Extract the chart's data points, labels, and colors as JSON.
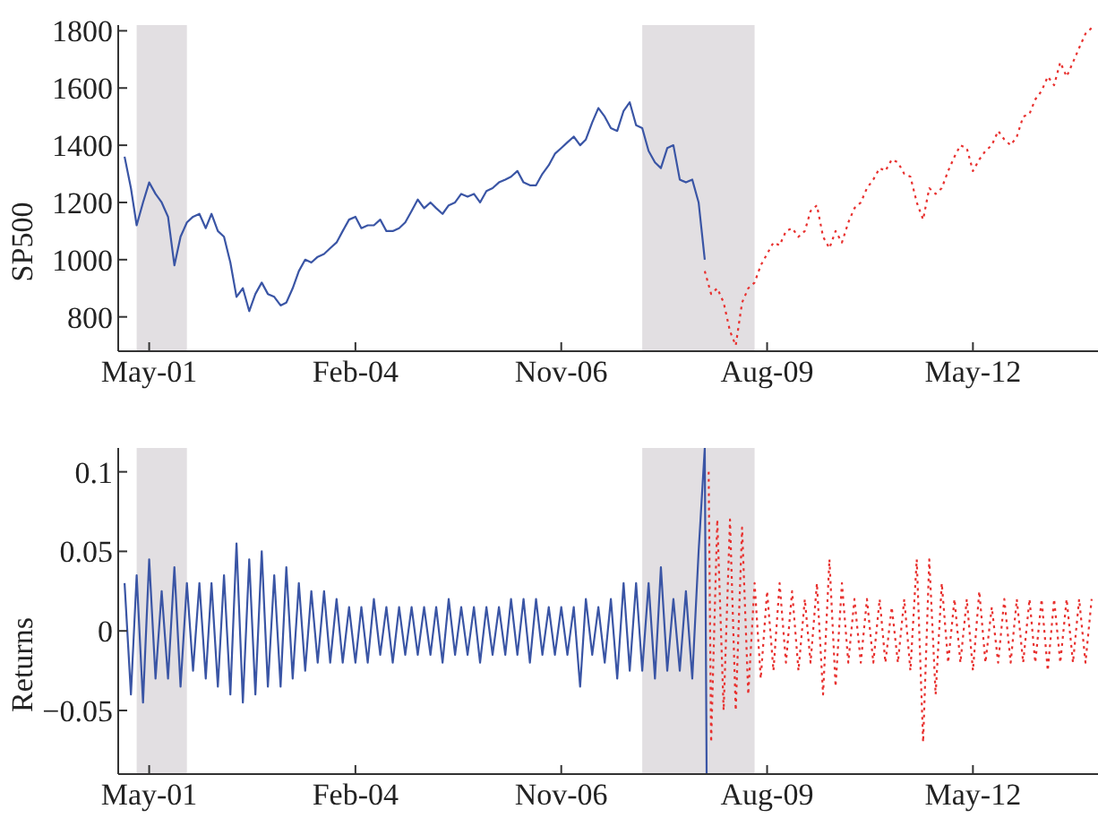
{
  "chart_data": [
    {
      "type": "line",
      "ylabel": "SP500",
      "xlim": [
        "2000-12-01",
        "2014-01-01"
      ],
      "xticks": [
        {
          "value": "2001-05",
          "label": "May-01"
        },
        {
          "value": "2004-02",
          "label": "Feb-04"
        },
        {
          "value": "2006-11",
          "label": "Nov-06"
        },
        {
          "value": "2009-08",
          "label": "Aug-09"
        },
        {
          "value": "2012-05",
          "label": "May-12"
        }
      ],
      "ylim": [
        680,
        1820
      ],
      "yticks": [
        800,
        1000,
        1200,
        1400,
        1600,
        1800
      ],
      "grid": false,
      "legend": false,
      "marker": "none",
      "bands": [
        {
          "axis": "x",
          "from": "2001-03",
          "to": "2001-11",
          "color": "#e2dfe2"
        },
        {
          "axis": "x",
          "from": "2007-12",
          "to": "2009-06",
          "color": "#e2dfe2"
        }
      ],
      "series": [
        {
          "color": "#3a55a5",
          "line_style": "solid",
          "x": [
            "2001-01",
            "2001-02",
            "2001-03",
            "2001-04",
            "2001-05",
            "2001-06",
            "2001-07",
            "2001-08",
            "2001-09",
            "2001-10",
            "2001-11",
            "2001-12",
            "2002-01",
            "2002-02",
            "2002-03",
            "2002-04",
            "2002-05",
            "2002-06",
            "2002-07",
            "2002-08",
            "2002-09",
            "2002-10",
            "2002-11",
            "2002-12",
            "2003-01",
            "2003-02",
            "2003-03",
            "2003-04",
            "2003-05",
            "2003-06",
            "2003-07",
            "2003-08",
            "2003-09",
            "2003-10",
            "2003-11",
            "2003-12",
            "2004-01",
            "2004-02",
            "2004-03",
            "2004-04",
            "2004-05",
            "2004-06",
            "2004-07",
            "2004-08",
            "2004-09",
            "2004-10",
            "2004-11",
            "2004-12",
            "2005-01",
            "2005-02",
            "2005-03",
            "2005-04",
            "2005-05",
            "2005-06",
            "2005-07",
            "2005-08",
            "2005-09",
            "2005-10",
            "2005-11",
            "2005-12",
            "2006-01",
            "2006-02",
            "2006-03",
            "2006-04",
            "2006-05",
            "2006-06",
            "2006-07",
            "2006-08",
            "2006-09",
            "2006-10",
            "2006-11",
            "2006-12",
            "2007-01",
            "2007-02",
            "2007-03",
            "2007-04",
            "2007-05",
            "2007-06",
            "2007-07",
            "2007-08",
            "2007-09",
            "2007-10",
            "2007-11",
            "2007-12",
            "2008-01",
            "2008-02",
            "2008-03",
            "2008-04",
            "2008-05",
            "2008-06",
            "2008-07",
            "2008-08",
            "2008-09",
            "2008-10"
          ],
          "values": [
            1360,
            1250,
            1120,
            1200,
            1270,
            1230,
            1200,
            1150,
            980,
            1080,
            1130,
            1150,
            1160,
            1110,
            1160,
            1100,
            1080,
            990,
            870,
            900,
            820,
            880,
            920,
            880,
            870,
            840,
            850,
            900,
            960,
            1000,
            990,
            1010,
            1020,
            1040,
            1060,
            1100,
            1140,
            1150,
            1110,
            1120,
            1120,
            1140,
            1100,
            1100,
            1110,
            1130,
            1170,
            1210,
            1180,
            1200,
            1180,
            1160,
            1190,
            1200,
            1230,
            1220,
            1230,
            1200,
            1240,
            1250,
            1270,
            1280,
            1290,
            1310,
            1270,
            1260,
            1260,
            1300,
            1330,
            1370,
            1390,
            1410,
            1430,
            1400,
            1420,
            1480,
            1530,
            1500,
            1460,
            1450,
            1520,
            1550,
            1470,
            1460,
            1380,
            1340,
            1320,
            1390,
            1400,
            1280,
            1270,
            1280,
            1200,
            1000
          ]
        },
        {
          "color": "#e8312f",
          "line_style": "dotted",
          "x": [
            "2008-10",
            "2008-11",
            "2008-12",
            "2009-01",
            "2009-02",
            "2009-03",
            "2009-04",
            "2009-05",
            "2009-06",
            "2009-07",
            "2009-08",
            "2009-09",
            "2009-10",
            "2009-11",
            "2009-12",
            "2010-01",
            "2010-02",
            "2010-03",
            "2010-04",
            "2010-05",
            "2010-06",
            "2010-07",
            "2010-08",
            "2010-09",
            "2010-10",
            "2010-11",
            "2010-12",
            "2011-01",
            "2011-02",
            "2011-03",
            "2011-04",
            "2011-05",
            "2011-06",
            "2011-07",
            "2011-08",
            "2011-09",
            "2011-10",
            "2011-11",
            "2011-12",
            "2012-01",
            "2012-02",
            "2012-03",
            "2012-04",
            "2012-05",
            "2012-06",
            "2012-07",
            "2012-08",
            "2012-09",
            "2012-10",
            "2012-11",
            "2012-12",
            "2013-01",
            "2013-02",
            "2013-03",
            "2013-04",
            "2013-05",
            "2013-06",
            "2013-07",
            "2013-08",
            "2013-09",
            "2013-10",
            "2013-11",
            "2013-12"
          ],
          "values": [
            960,
            880,
            900,
            850,
            750,
            700,
            850,
            900,
            920,
            980,
            1020,
            1060,
            1050,
            1100,
            1110,
            1080,
            1100,
            1170,
            1190,
            1080,
            1040,
            1100,
            1060,
            1130,
            1180,
            1200,
            1250,
            1280,
            1320,
            1310,
            1350,
            1340,
            1300,
            1290,
            1200,
            1140,
            1250,
            1230,
            1250,
            1310,
            1360,
            1400,
            1390,
            1310,
            1350,
            1380,
            1400,
            1450,
            1420,
            1400,
            1430,
            1500,
            1510,
            1560,
            1590,
            1640,
            1610,
            1690,
            1640,
            1690,
            1740,
            1790,
            1810
          ]
        }
      ]
    },
    {
      "type": "line",
      "ylabel": "Returns",
      "xlim": [
        "2000-12-01",
        "2014-01-01"
      ],
      "xticks": [
        {
          "value": "2001-05",
          "label": "May-01"
        },
        {
          "value": "2004-02",
          "label": "Feb-04"
        },
        {
          "value": "2006-11",
          "label": "Nov-06"
        },
        {
          "value": "2009-08",
          "label": "Aug-09"
        },
        {
          "value": "2012-05",
          "label": "May-12"
        }
      ],
      "ylim": [
        -0.09,
        0.115
      ],
      "yticks": [
        {
          "value": -0.05,
          "label": "−0.05"
        },
        0,
        0.05,
        0.1
      ],
      "grid": false,
      "legend": false,
      "marker": "none",
      "bands": [
        {
          "axis": "x",
          "from": "2001-03",
          "to": "2001-11",
          "color": "#e2dfe2"
        },
        {
          "axis": "x",
          "from": "2007-12",
          "to": "2009-06",
          "color": "#e2dfe2"
        }
      ],
      "series": [
        {
          "color": "#3a55a5",
          "line_style": "solid",
          "x": [
            "2001-01",
            "2001-02",
            "2001-03",
            "2001-04",
            "2001-05",
            "2001-06",
            "2001-07",
            "2001-08",
            "2001-09",
            "2001-10",
            "2001-11",
            "2001-12",
            "2002-01",
            "2002-02",
            "2002-03",
            "2002-04",
            "2002-05",
            "2002-06",
            "2002-07",
            "2002-08",
            "2002-09",
            "2002-10",
            "2002-11",
            "2002-12",
            "2003-01",
            "2003-02",
            "2003-03",
            "2003-04",
            "2003-05",
            "2003-06",
            "2003-07",
            "2003-08",
            "2003-09",
            "2003-10",
            "2003-11",
            "2003-12",
            "2004-01",
            "2004-02",
            "2004-03",
            "2004-04",
            "2004-05",
            "2004-06",
            "2004-07",
            "2004-08",
            "2004-09",
            "2004-10",
            "2004-11",
            "2004-12",
            "2005-01",
            "2005-02",
            "2005-03",
            "2005-04",
            "2005-05",
            "2005-06",
            "2005-07",
            "2005-08",
            "2005-09",
            "2005-10",
            "2005-11",
            "2005-12",
            "2006-01",
            "2006-02",
            "2006-03",
            "2006-04",
            "2006-05",
            "2006-06",
            "2006-07",
            "2006-08",
            "2006-09",
            "2006-10",
            "2006-11",
            "2006-12",
            "2007-01",
            "2007-02",
            "2007-03",
            "2007-04",
            "2007-05",
            "2007-06",
            "2007-07",
            "2007-08",
            "2007-09",
            "2007-10",
            "2007-11",
            "2007-12",
            "2008-01",
            "2008-02",
            "2008-03",
            "2008-04",
            "2008-05",
            "2008-06",
            "2008-07",
            "2008-08",
            "2008-09",
            "2008-10-01",
            "2008-10-10"
          ],
          "values": [
            0.03,
            -0.04,
            0.035,
            -0.045,
            0.045,
            -0.03,
            0.025,
            -0.03,
            0.04,
            -0.035,
            0.03,
            -0.025,
            0.03,
            -0.03,
            0.03,
            -0.035,
            0.035,
            -0.04,
            0.055,
            -0.045,
            0.045,
            -0.04,
            0.05,
            -0.035,
            0.035,
            -0.035,
            0.04,
            -0.03,
            0.03,
            -0.025,
            0.025,
            -0.02,
            0.025,
            -0.02,
            0.02,
            -0.02,
            0.015,
            -0.02,
            0.015,
            -0.02,
            0.02,
            -0.015,
            0.015,
            -0.02,
            0.015,
            -0.015,
            0.015,
            -0.015,
            0.015,
            -0.015,
            0.015,
            -0.02,
            0.02,
            -0.015,
            0.015,
            -0.015,
            0.015,
            -0.02,
            0.015,
            -0.015,
            0.015,
            -0.015,
            0.02,
            -0.015,
            0.02,
            -0.02,
            0.02,
            -0.015,
            0.015,
            -0.015,
            0.015,
            -0.015,
            0.015,
            -0.035,
            0.02,
            -0.015,
            0.015,
            -0.02,
            0.02,
            -0.03,
            0.03,
            -0.025,
            0.03,
            -0.025,
            0.03,
            -0.03,
            0.04,
            -0.025,
            0.02,
            -0.025,
            0.025,
            -0.03,
            0.05,
            0.115,
            -0.09
          ]
        },
        {
          "color": "#e8312f",
          "line_style": "dotted",
          "x": [
            "2008-10-20",
            "2008-11",
            "2008-12",
            "2009-01",
            "2009-02",
            "2009-03",
            "2009-04",
            "2009-05",
            "2009-06",
            "2009-07",
            "2009-08",
            "2009-09",
            "2009-10",
            "2009-11",
            "2009-12",
            "2010-01",
            "2010-02",
            "2010-03",
            "2010-04",
            "2010-05",
            "2010-06",
            "2010-07",
            "2010-08",
            "2010-09",
            "2010-10",
            "2010-11",
            "2010-12",
            "2011-01",
            "2011-02",
            "2011-03",
            "2011-04",
            "2011-05",
            "2011-06",
            "2011-07",
            "2011-08",
            "2011-09",
            "2011-10",
            "2011-11",
            "2011-12",
            "2012-01",
            "2012-02",
            "2012-03",
            "2012-04",
            "2012-05",
            "2012-06",
            "2012-07",
            "2012-08",
            "2012-09",
            "2012-10",
            "2012-11",
            "2012-12",
            "2013-01",
            "2013-02",
            "2013-03",
            "2013-04",
            "2013-05",
            "2013-06",
            "2013-07",
            "2013-08",
            "2013-09",
            "2013-10",
            "2013-11",
            "2013-12"
          ],
          "values": [
            0.1,
            -0.07,
            0.07,
            -0.05,
            0.07,
            -0.05,
            0.065,
            -0.04,
            0.03,
            -0.03,
            0.025,
            -0.025,
            0.03,
            -0.02,
            0.025,
            -0.025,
            0.02,
            -0.02,
            0.03,
            -0.04,
            0.045,
            -0.035,
            0.03,
            -0.02,
            0.02,
            -0.02,
            0.02,
            -0.02,
            0.02,
            -0.02,
            0.015,
            -0.02,
            0.02,
            -0.025,
            0.045,
            -0.07,
            0.045,
            -0.04,
            0.03,
            -0.02,
            0.02,
            -0.02,
            0.02,
            -0.025,
            0.025,
            -0.02,
            0.015,
            -0.02,
            0.02,
            -0.02,
            0.02,
            -0.02,
            0.02,
            -0.02,
            0.02,
            -0.025,
            0.02,
            -0.02,
            0.02,
            -0.02,
            0.02,
            -0.02,
            0.02
          ]
        }
      ]
    }
  ]
}
